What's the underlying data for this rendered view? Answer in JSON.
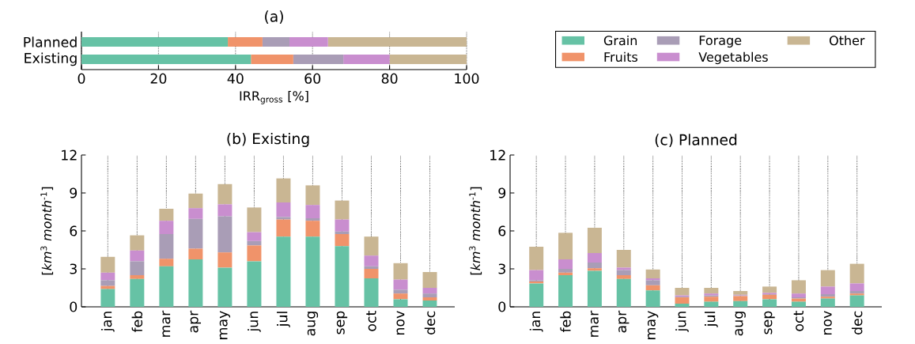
{
  "chart_data": [
    {
      "type": "bar",
      "orientation": "horizontal",
      "stacked": true,
      "title": "(a)",
      "xlabel": "IRR$_{gross}$ [%]",
      "categories": [
        "Planned",
        "Existing"
      ],
      "xlim": [
        0,
        100
      ],
      "xticks": [
        0,
        20,
        40,
        60,
        80,
        100
      ],
      "grid": "x",
      "legend": "right",
      "series": [
        {
          "name": "Grain",
          "color": "#66c2a5",
          "values": [
            38,
            44
          ]
        },
        {
          "name": "Fruits",
          "color": "#f0936a",
          "values": [
            9,
            11
          ]
        },
        {
          "name": "Forage",
          "color": "#a99db6",
          "values": [
            7,
            13
          ]
        },
        {
          "name": "Vegetables",
          "color": "#c98ecf",
          "values": [
            10,
            12
          ]
        },
        {
          "name": "Other",
          "color": "#c9b693",
          "values": [
            36,
            20
          ]
        }
      ]
    },
    {
      "type": "bar",
      "stacked": true,
      "title": "(b) Existing",
      "ylabel": "[*km*$^{3}$ *month*$^{-1}$]",
      "categories": [
        "jan",
        "feb",
        "mar",
        "apr",
        "may",
        "jun",
        "jul",
        "aug",
        "sep",
        "oct",
        "nov",
        "dec"
      ],
      "ylim": [
        0,
        12
      ],
      "yticks": [
        0,
        3,
        6,
        9,
        12
      ],
      "grid": "x",
      "series": [
        {
          "color": "#66c2a5",
          "values": [
            1.4,
            2.2,
            3.2,
            3.75,
            3.1,
            3.6,
            5.55,
            5.55,
            4.8,
            2.25,
            0.6,
            0.5
          ]
        },
        {
          "color": "#f0936a",
          "values": [
            0.25,
            0.3,
            0.6,
            0.85,
            1.2,
            1.25,
            1.35,
            1.25,
            0.95,
            0.75,
            0.45,
            0.25
          ]
        },
        {
          "color": "#a99db6",
          "values": [
            0.45,
            1.1,
            1.95,
            2.35,
            2.85,
            0.35,
            0.2,
            0.2,
            0.2,
            0.2,
            0.3,
            0.3
          ]
        },
        {
          "color": "#c98ecf",
          "values": [
            0.6,
            0.85,
            1.05,
            0.85,
            0.95,
            0.7,
            1.15,
            1.05,
            0.95,
            0.85,
            0.8,
            0.45
          ]
        },
        {
          "color": "#c9b693",
          "values": [
            1.25,
            1.2,
            0.95,
            1.15,
            1.6,
            1.95,
            1.9,
            1.55,
            1.5,
            1.5,
            1.3,
            1.25
          ]
        }
      ]
    },
    {
      "type": "bar",
      "stacked": true,
      "title": "(c) Planned",
      "ylabel": "[*km*$^{3}$ *month*$^{-1}$]",
      "categories": [
        "jan",
        "feb",
        "mar",
        "apr",
        "may",
        "jun",
        "jul",
        "aug",
        "sep",
        "oct",
        "nov",
        "dec"
      ],
      "ylim": [
        0,
        12
      ],
      "yticks": [
        0,
        3,
        6,
        9,
        12
      ],
      "grid": "x",
      "series": [
        {
          "color": "#66c2a5",
          "values": [
            1.85,
            2.5,
            2.85,
            2.2,
            1.3,
            0.25,
            0.4,
            0.45,
            0.6,
            0.4,
            0.65,
            0.9
          ]
        },
        {
          "color": "#f0936a",
          "values": [
            0.15,
            0.2,
            0.2,
            0.3,
            0.4,
            0.5,
            0.4,
            0.4,
            0.35,
            0.25,
            0.15,
            0.15
          ]
        },
        {
          "color": "#a99db6",
          "values": [
            0.1,
            0.3,
            0.45,
            0.4,
            0.4,
            0.05,
            0.1,
            0.05,
            0.05,
            0.1,
            0.2,
            0.2
          ]
        },
        {
          "color": "#c98ecf",
          "values": [
            0.8,
            0.75,
            0.75,
            0.2,
            0.15,
            0.1,
            0.15,
            0.05,
            0.1,
            0.3,
            0.6,
            0.6
          ]
        },
        {
          "color": "#c9b693",
          "values": [
            1.85,
            2.1,
            2.0,
            1.4,
            0.7,
            0.6,
            0.45,
            0.3,
            0.5,
            1.05,
            1.3,
            1.55
          ]
        }
      ]
    }
  ]
}
